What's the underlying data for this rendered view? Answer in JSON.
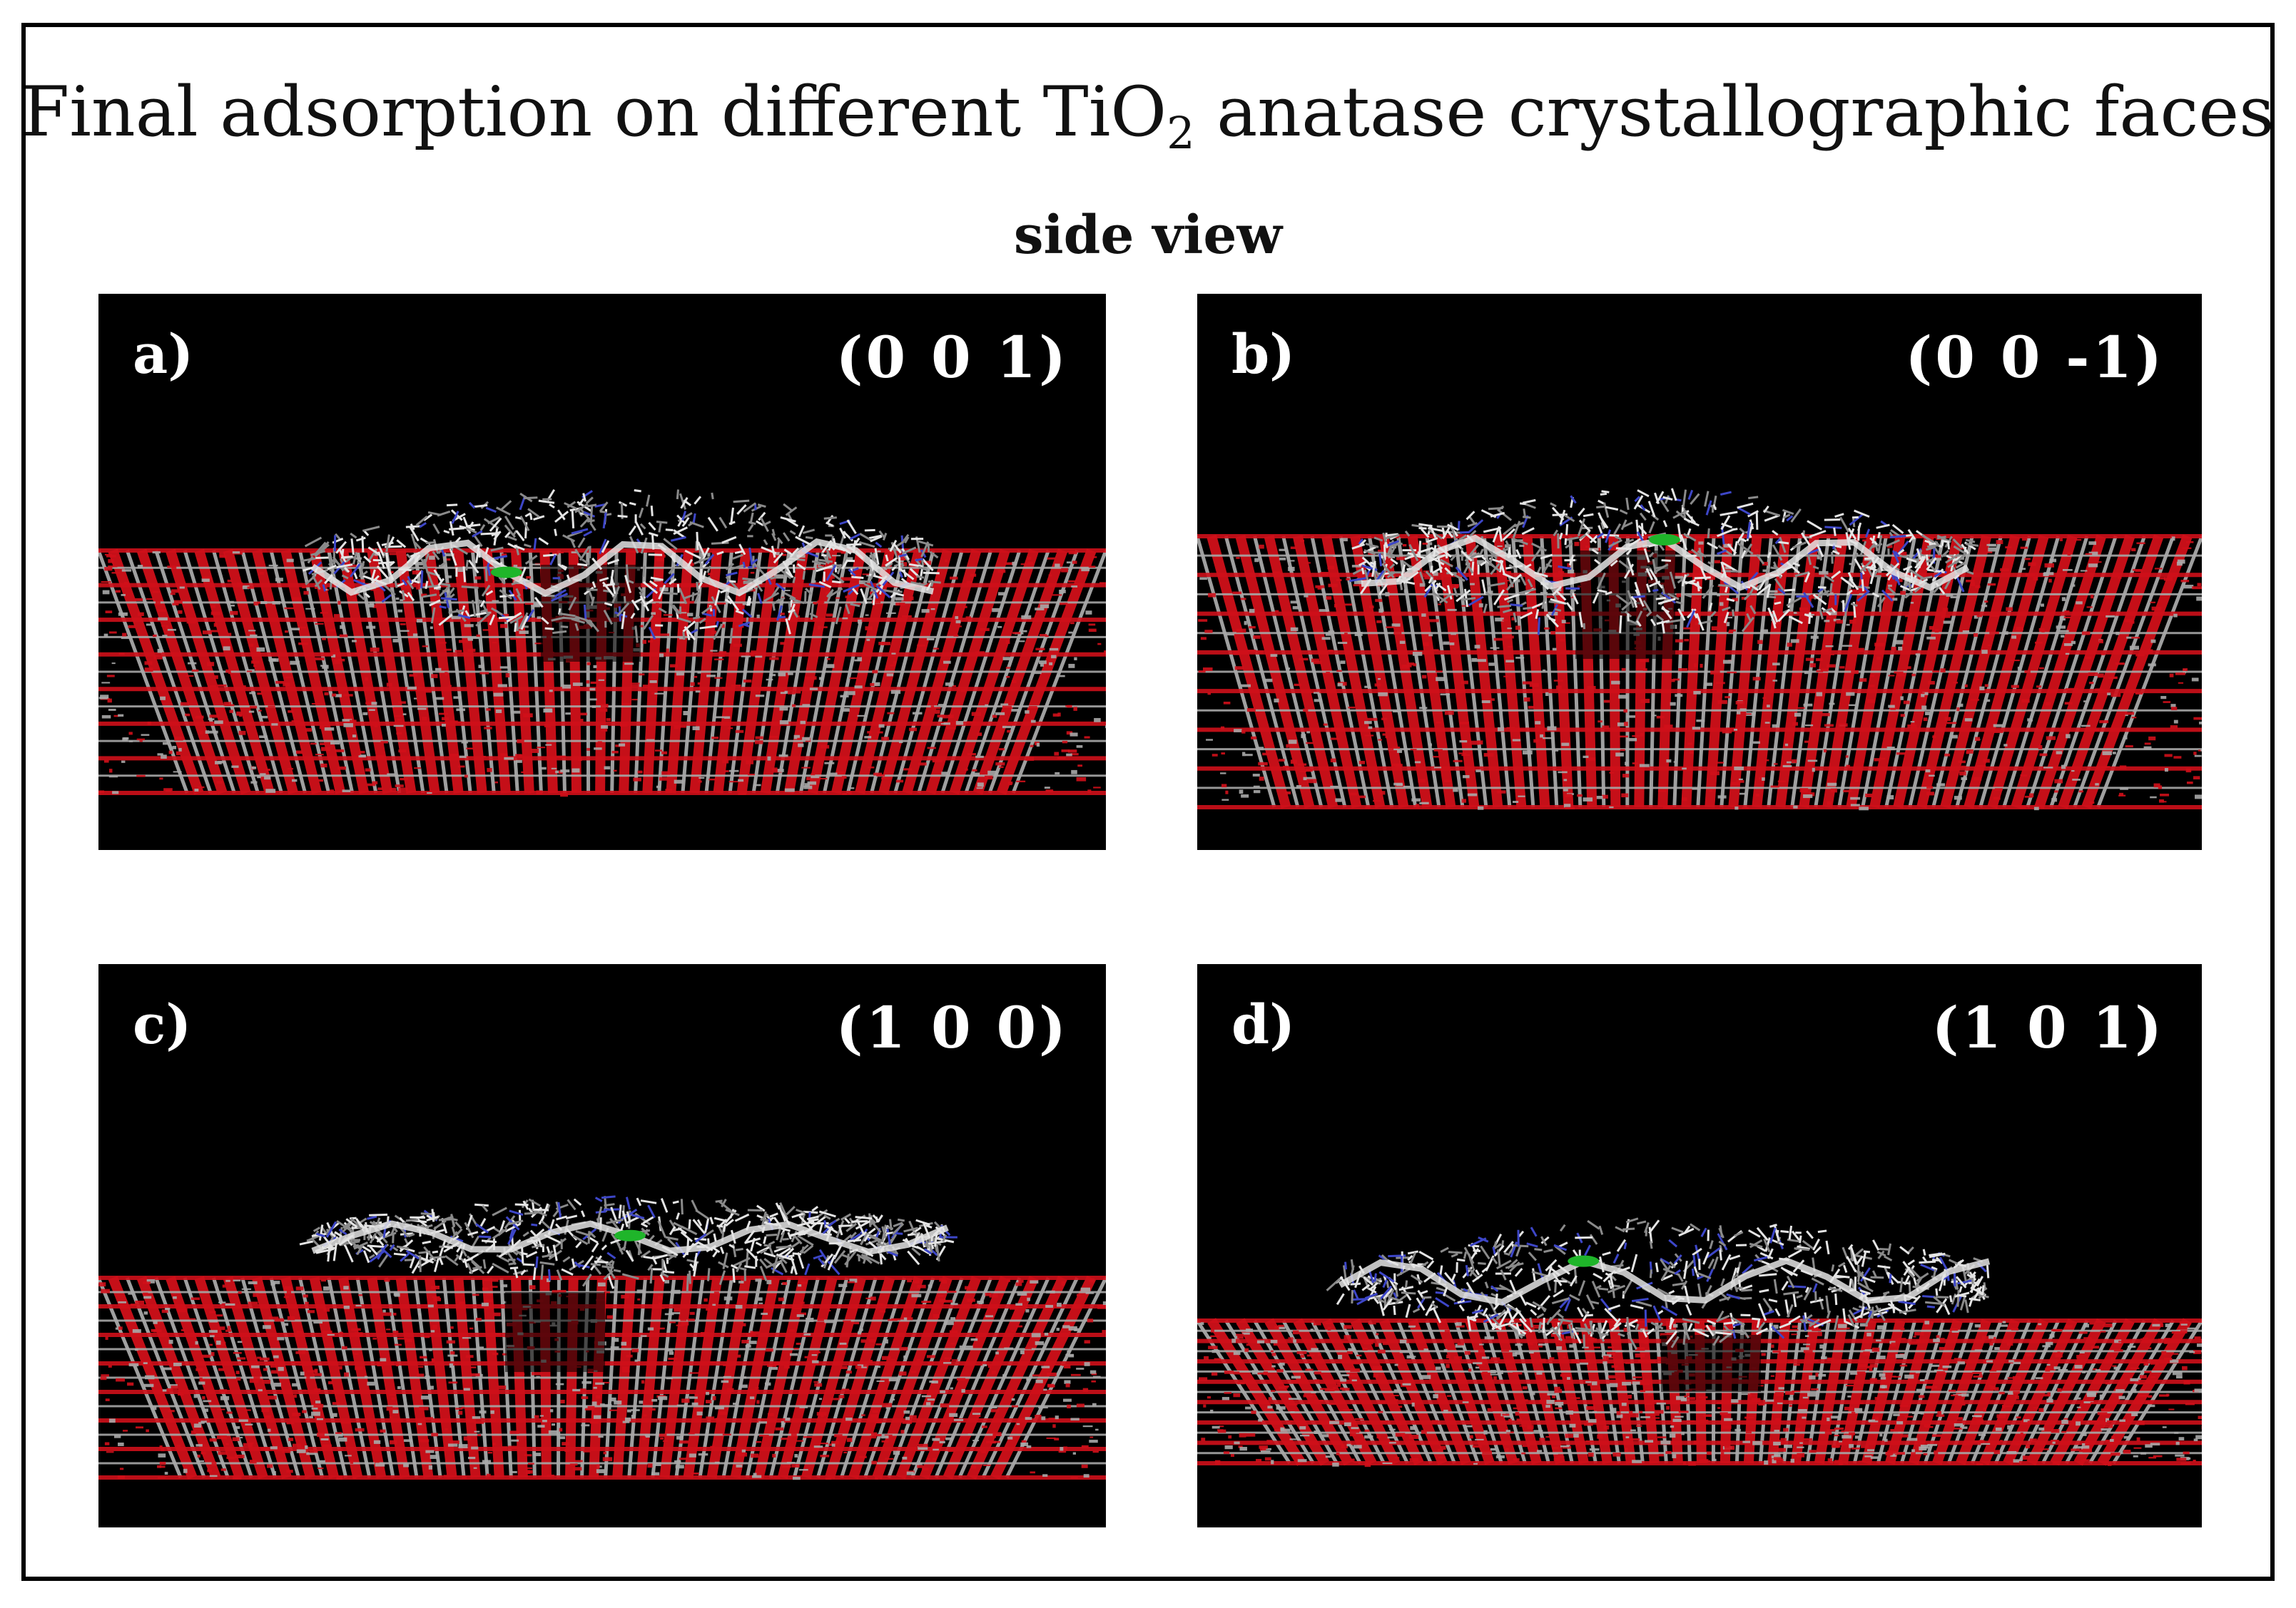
{
  "figure": {
    "title_main": "Final adsorption on different TiO",
    "title_sub": "2",
    "title_rest": " anatase crystallographic faces",
    "subtitle": "side view"
  },
  "panels": [
    {
      "label": "a)",
      "face": "(0 0 1)"
    },
    {
      "label": "b)",
      "face": "(0 0 -1)"
    },
    {
      "label": "c)",
      "face": "(1 0 0)"
    },
    {
      "label": "d)",
      "face": "(1 0 1)"
    }
  ],
  "colors": {
    "panel_background": "#000000",
    "oxygen": "#d0101a",
    "titanium": "#a8a8a8",
    "peptide_carbon": "#8a8a8a",
    "peptide_nitrogen": "#3d46c8",
    "peptide_backbone": "#e4e4e4",
    "highlight_green": "#1fb52a",
    "label_text": "#ffffff"
  }
}
